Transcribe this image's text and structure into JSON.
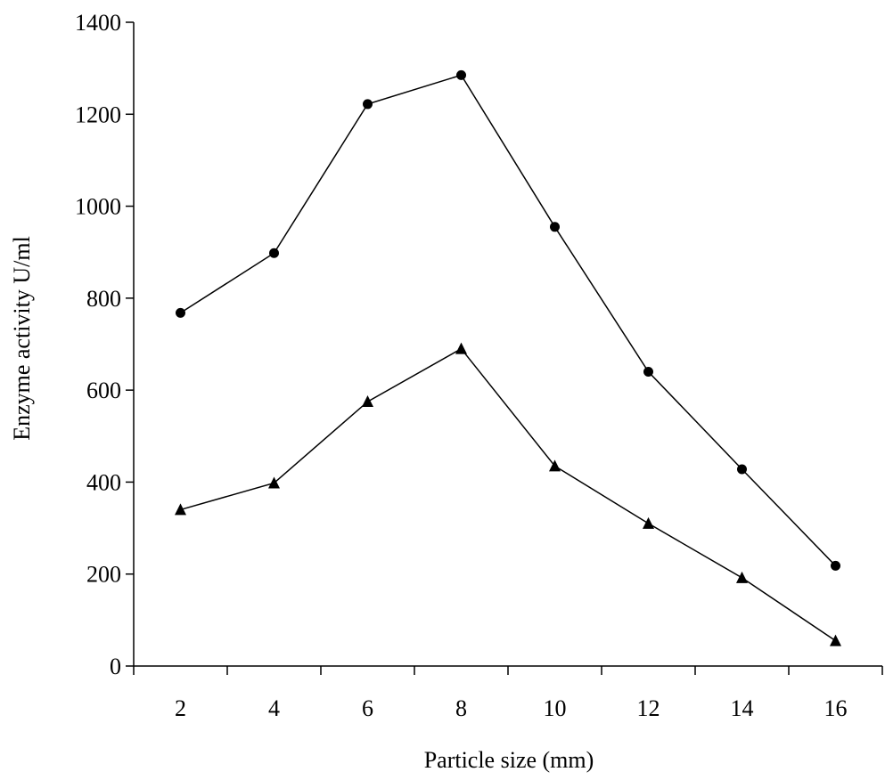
{
  "chart_data": {
    "type": "line",
    "title": "",
    "xlabel": "Particle size (mm)",
    "ylabel": "Enzyme activity U/ml",
    "x": [
      2,
      4,
      6,
      8,
      10,
      12,
      14,
      16
    ],
    "xticks": [
      "2",
      "4",
      "6",
      "8",
      "10",
      "12",
      "14",
      "16"
    ],
    "xlim": [
      1,
      17
    ],
    "ylim": [
      0,
      1400
    ],
    "yticks": [
      "0",
      "200",
      "400",
      "600",
      "800",
      "1000",
      "1200",
      "1400"
    ],
    "grid": false,
    "legend": "none",
    "series": [
      {
        "marker": "circle",
        "color": "#000000",
        "values": [
          768,
          898,
          1222,
          1285,
          955,
          640,
          428,
          218
        ]
      },
      {
        "marker": "triangle",
        "color": "#000000",
        "values": [
          340,
          398,
          575,
          690,
          435,
          310,
          192,
          55
        ]
      }
    ]
  }
}
